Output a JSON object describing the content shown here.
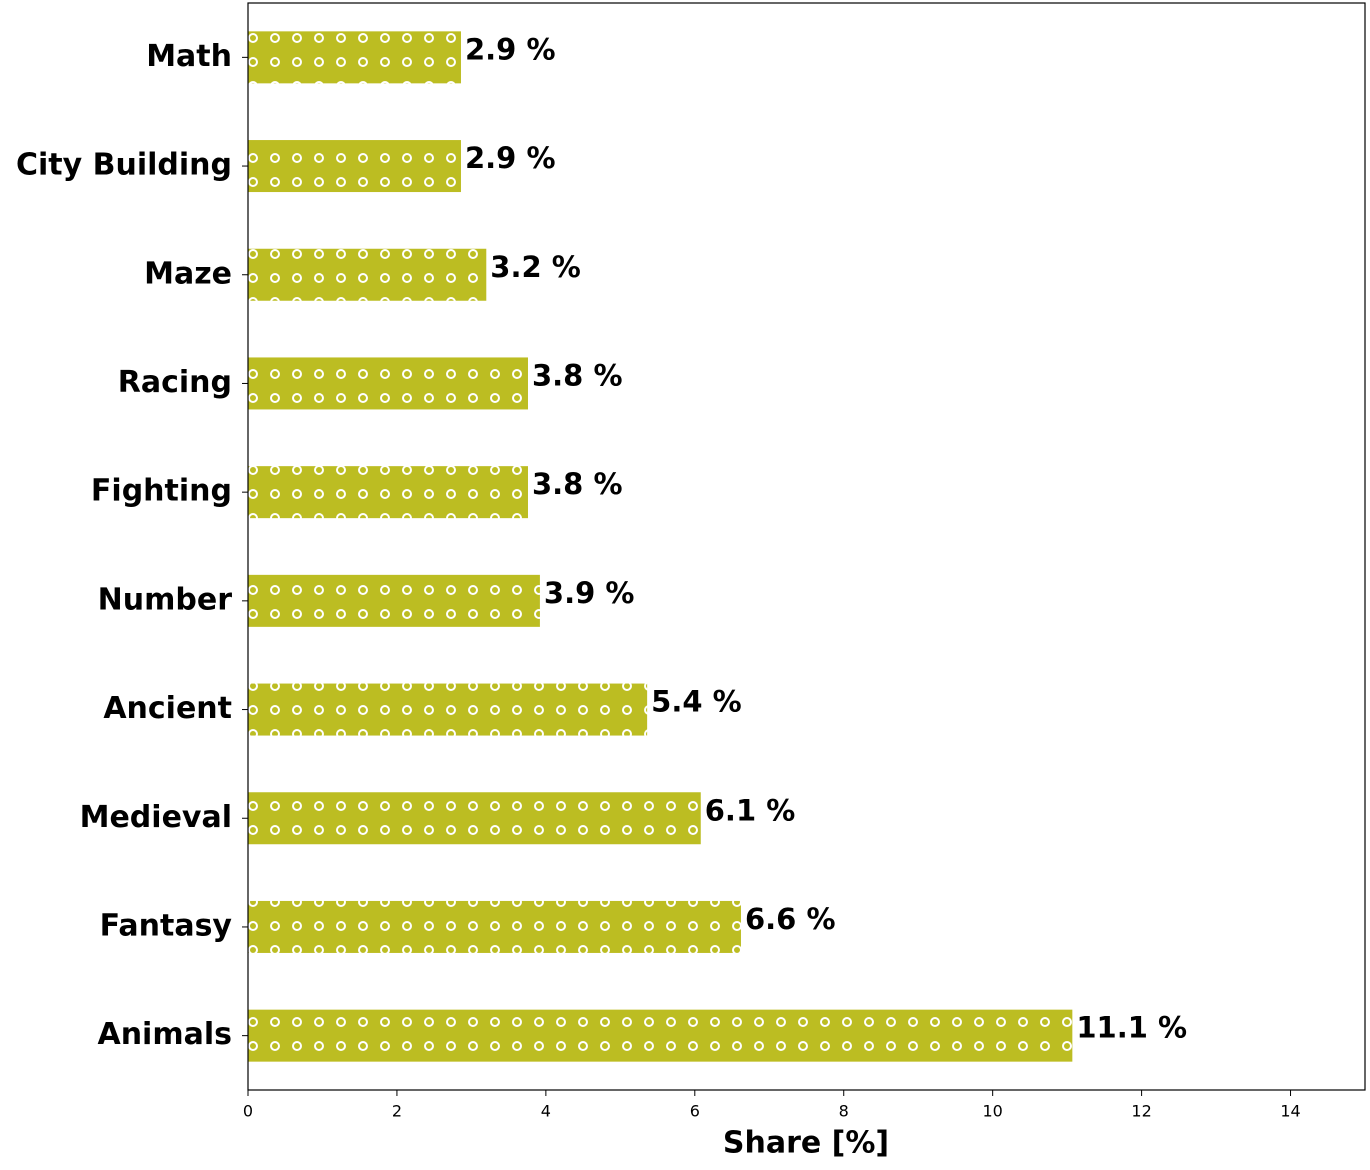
{
  "chart_data": {
    "type": "barh",
    "xlabel": "Share [%]",
    "categories": [
      "Math",
      "City Building",
      "Maze",
      "Racing",
      "Fighting",
      "Number",
      "Ancient",
      "Medieval",
      "Fantasy",
      "Animals"
    ],
    "values": [
      2.86,
      2.86,
      3.2,
      3.76,
      3.76,
      3.92,
      5.36,
      6.08,
      6.62,
      11.07
    ],
    "value_labels": [
      "2.9 %",
      "2.9 %",
      "3.2 %",
      "3.8 %",
      "3.8 %",
      "3.9 %",
      "5.4 %",
      "6.1 %",
      "6.6 %",
      "11.1 %"
    ],
    "color": "#bcbd22",
    "xlim": [
      0,
      15
    ],
    "xticks": [
      0,
      2,
      4,
      6,
      8,
      10,
      12,
      14
    ],
    "grid": false
  }
}
